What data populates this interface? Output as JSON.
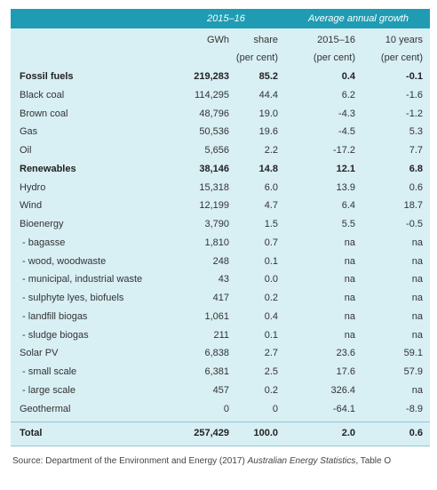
{
  "header": {
    "period": "2015–16",
    "growth": "Average annual growth"
  },
  "subheaders": [
    [
      "",
      "GWh",
      "share",
      "2015–16",
      "10 years"
    ],
    [
      "",
      "",
      "(per cent)",
      "(per cent)",
      "(per cent)"
    ]
  ],
  "rows": [
    {
      "bold": true,
      "cells": [
        "Fossil fuels",
        "219,283",
        "85.2",
        "0.4",
        "-0.1"
      ]
    },
    {
      "bold": false,
      "cells": [
        "Black coal",
        "114,295",
        "44.4",
        "6.2",
        "-1.6"
      ]
    },
    {
      "bold": false,
      "cells": [
        "Brown coal",
        "48,796",
        "19.0",
        "-4.3",
        "-1.2"
      ]
    },
    {
      "bold": false,
      "cells": [
        "Gas",
        "50,536",
        "19.6",
        "-4.5",
        "5.3"
      ]
    },
    {
      "bold": false,
      "cells": [
        "Oil",
        "5,656",
        "2.2",
        "-17.2",
        "7.7"
      ]
    },
    {
      "bold": true,
      "cells": [
        "Renewables",
        "38,146",
        "14.8",
        "12.1",
        "6.8"
      ]
    },
    {
      "bold": false,
      "cells": [
        "Hydro",
        "15,318",
        "6.0",
        "13.9",
        "0.6"
      ]
    },
    {
      "bold": false,
      "cells": [
        "Wind",
        "12,199",
        "4.7",
        "6.4",
        "18.7"
      ]
    },
    {
      "bold": false,
      "cells": [
        "Bioenergy",
        "3,790",
        "1.5",
        "5.5",
        "-0.5"
      ]
    },
    {
      "bold": false,
      "cells": [
        " - bagasse",
        "1,810",
        "0.7",
        "na",
        "na"
      ]
    },
    {
      "bold": false,
      "cells": [
        " - wood, woodwaste",
        "248",
        "0.1",
        "na",
        "na"
      ]
    },
    {
      "bold": false,
      "cells": [
        " - municipal, industrial waste",
        "43",
        "0.0",
        "na",
        "na"
      ]
    },
    {
      "bold": false,
      "cells": [
        " - sulphyte lyes, biofuels",
        "417",
        "0.2",
        "na",
        "na"
      ]
    },
    {
      "bold": false,
      "cells": [
        " - landfill biogas",
        "1,061",
        "0.4",
        "na",
        "na"
      ]
    },
    {
      "bold": false,
      "cells": [
        " - sludge biogas",
        "211",
        "0.1",
        "na",
        "na"
      ]
    },
    {
      "bold": false,
      "cells": [
        "Solar PV",
        "6,838",
        "2.7",
        "23.6",
        "59.1"
      ]
    },
    {
      "bold": false,
      "cells": [
        " - small scale",
        "6,381",
        "2.5",
        "17.6",
        "57.9"
      ]
    },
    {
      "bold": false,
      "cells": [
        " - large scale",
        "457",
        "0.2",
        "326.4",
        "na"
      ]
    },
    {
      "bold": false,
      "cells": [
        "Geothermal",
        "0",
        "0",
        "-64.1",
        "-8.9"
      ]
    }
  ],
  "total": {
    "bold": true,
    "cells": [
      "Total",
      "257,429",
      "100.0",
      "2.0",
      "0.6"
    ]
  },
  "source": {
    "prefix": "Source: Department of the Environment and Energy (2017) ",
    "title": "Australian Energy Statistics",
    "suffix": ", Table O"
  }
}
